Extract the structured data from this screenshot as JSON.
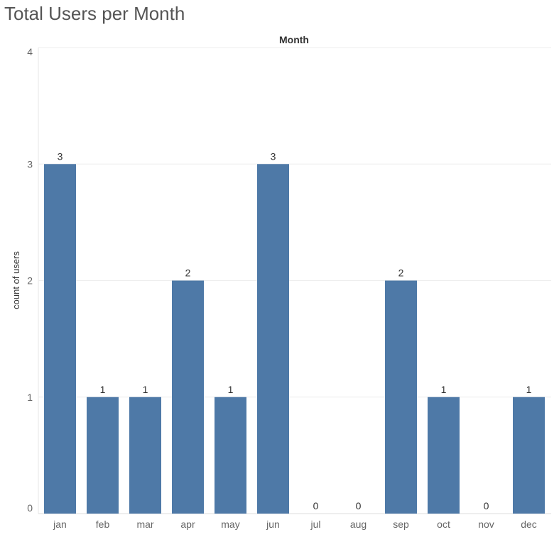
{
  "page": {
    "title": "Total Users per Month"
  },
  "chart_data": {
    "type": "bar",
    "title": "Total Users per Month",
    "column_header": "Month",
    "xlabel": "",
    "ylabel": "count of users",
    "categories": [
      "jan",
      "feb",
      "mar",
      "apr",
      "may",
      "jun",
      "jul",
      "aug",
      "sep",
      "oct",
      "nov",
      "dec"
    ],
    "values": [
      3,
      1,
      1,
      2,
      1,
      3,
      0,
      0,
      2,
      1,
      0,
      1
    ],
    "ylim": [
      0,
      4
    ],
    "yticks": [
      0,
      1,
      2,
      3,
      4
    ],
    "grid": true,
    "legend": "none",
    "data_labels": true,
    "bar_color": "#4e79a7"
  }
}
